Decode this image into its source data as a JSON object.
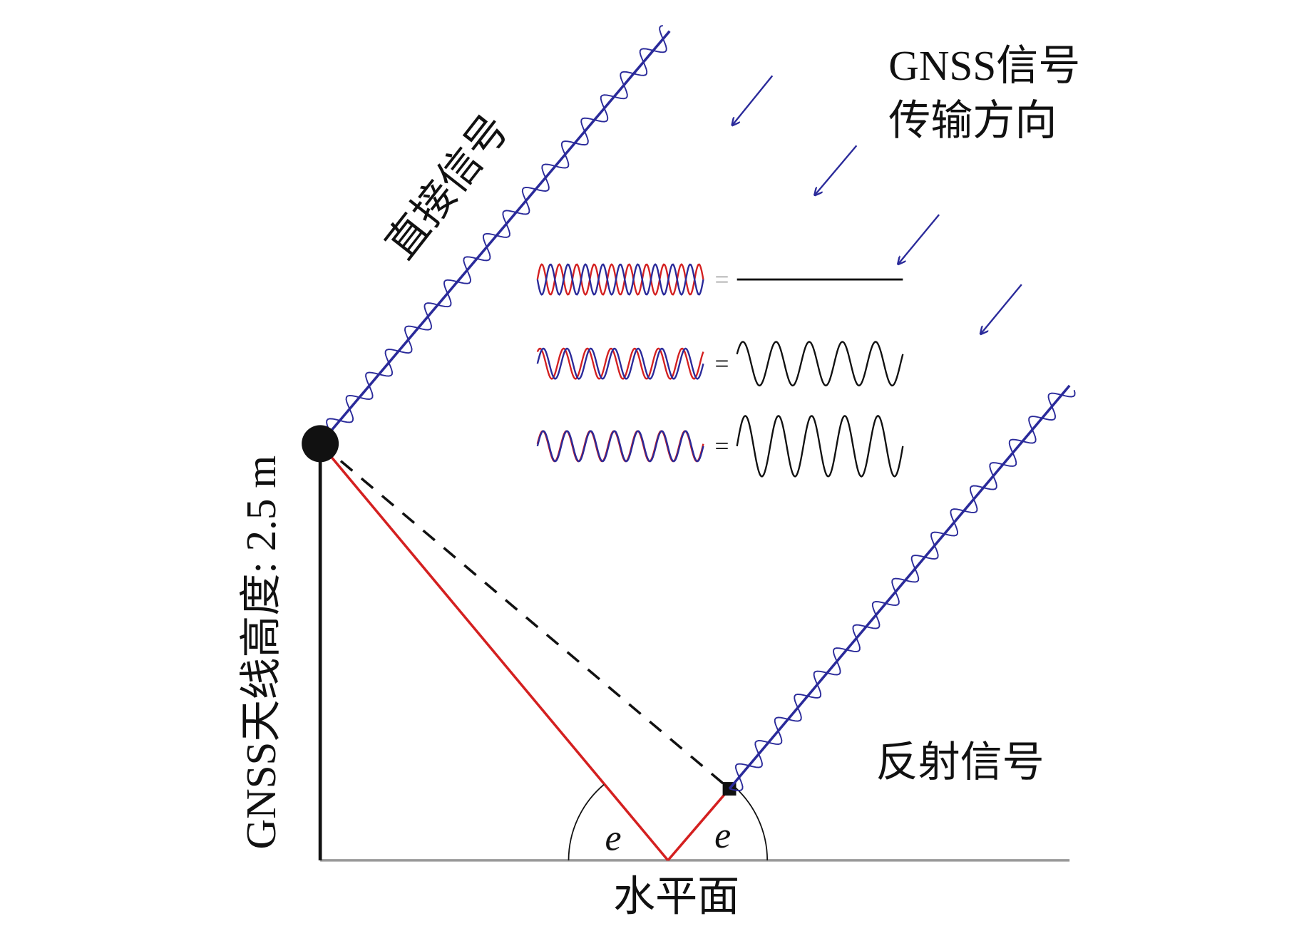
{
  "labels": {
    "signal_direction": [
      "GNSS信号",
      "传输方向"
    ],
    "direct_signal": "直接信号",
    "reflected_signal": "反射信号",
    "antenna_height": "GNSS天线高度: 2.5 m",
    "horizontal_plane": "水平面",
    "angles": [
      "e",
      "e"
    ],
    "equals": [
      "=",
      "=",
      "="
    ]
  }
}
